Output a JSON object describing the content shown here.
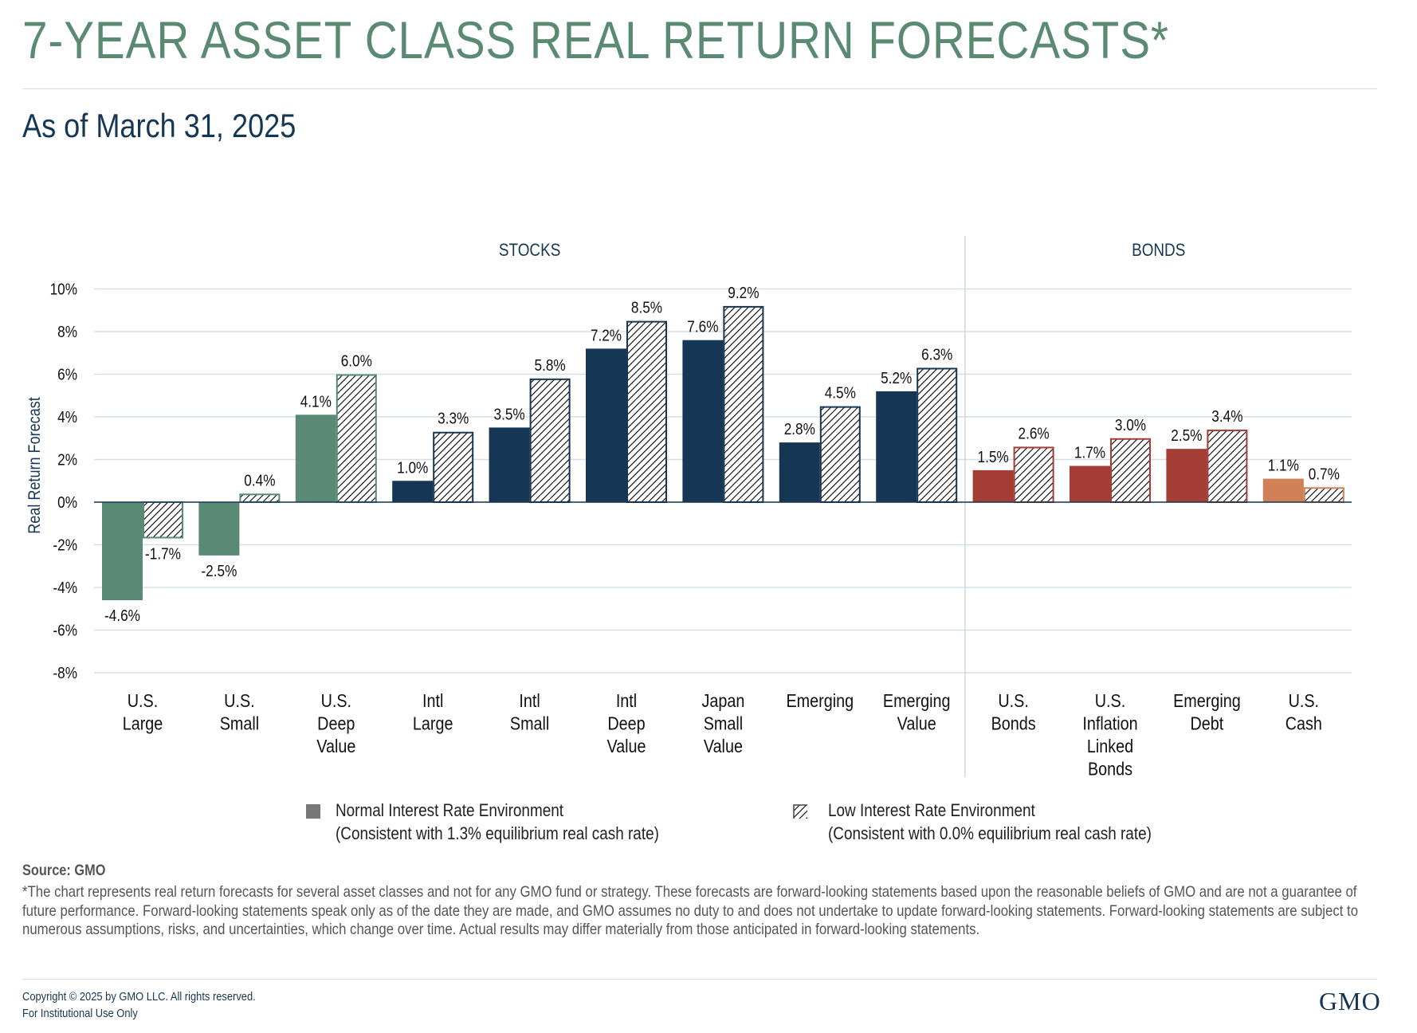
{
  "header": {
    "title": "7-YEAR ASSET CLASS REAL RETURN FORECASTS*",
    "subtitle": "As of March 31, 2025"
  },
  "chart_data": {
    "type": "bar",
    "ylabel": "Real Return Forecast",
    "ylim": [
      -8,
      10
    ],
    "yticks": [
      10,
      8,
      6,
      4,
      2,
      0,
      -2,
      -4,
      -6,
      -8
    ],
    "ytick_labels": [
      "10%",
      "8%",
      "6%",
      "4%",
      "2%",
      "0%",
      "-2%",
      "-4%",
      "-6%",
      "-8%"
    ],
    "grid": true,
    "groups": [
      {
        "label": "STOCKS",
        "categories": 9
      },
      {
        "label": "BONDS",
        "categories": 4
      }
    ],
    "categories": [
      [
        "U.S.",
        "Large"
      ],
      [
        "U.S.",
        "Small"
      ],
      [
        "U.S.",
        "Deep",
        "Value"
      ],
      [
        "Intl",
        "Large"
      ],
      [
        "Intl",
        "Small"
      ],
      [
        "Intl",
        "Deep",
        "Value"
      ],
      [
        "Japan",
        "Small",
        "Value"
      ],
      [
        "Emerging"
      ],
      [
        "Emerging",
        "Value"
      ],
      [
        "U.S.",
        "Bonds"
      ],
      [
        "U.S.",
        "Inflation",
        "Linked",
        "Bonds"
      ],
      [
        "Emerging",
        "Debt"
      ],
      [
        "U.S.",
        "Cash"
      ]
    ],
    "category_colors": [
      "#5a8a76",
      "#5a8a76",
      "#5a8a76",
      "#163753",
      "#163753",
      "#163753",
      "#163753",
      "#163753",
      "#163753",
      "#a33d35",
      "#a33d35",
      "#a33d35",
      "#cf8057"
    ],
    "series": [
      {
        "name": "Normal Interest Rate Environment",
        "pattern": "solid",
        "values": [
          -4.6,
          -2.5,
          4.1,
          1.0,
          3.5,
          7.2,
          7.6,
          2.8,
          5.2,
          1.5,
          1.7,
          2.5,
          1.1
        ],
        "labels": [
          "-4.6%",
          "-2.5%",
          "4.1%",
          "1.0%",
          "3.5%",
          "7.2%",
          "7.6%",
          "2.8%",
          "5.2%",
          "1.5%",
          "1.7%",
          "2.5%",
          "1.1%"
        ]
      },
      {
        "name": "Low Interest Rate Environment",
        "pattern": "hatched",
        "values": [
          -1.7,
          0.4,
          6.0,
          3.3,
          5.8,
          8.5,
          9.2,
          4.5,
          6.3,
          2.6,
          3.0,
          3.4,
          0.7
        ],
        "labels": [
          "-1.7%",
          "0.4%",
          "6.0%",
          "3.3%",
          "5.8%",
          "8.5%",
          "9.2%",
          "4.5%",
          "6.3%",
          "2.6%",
          "3.0%",
          "3.4%",
          "0.7%"
        ]
      }
    ],
    "legend": {
      "placement": "bottom",
      "items": [
        {
          "line1": "Normal Interest Rate Environment",
          "line2": "(Consistent with 1.3% equilibrium real cash rate)",
          "color": "#777777"
        },
        {
          "line1": "Low Interest Rate Environment",
          "line2": "(Consistent with 0.0% equilibrium real cash rate)",
          "color": "#444444"
        }
      ]
    }
  },
  "footer": {
    "source": "Source: GMO",
    "footnote": "*The chart represents real return forecasts for several asset classes and not for any GMO fund or strategy. These forecasts are forward-looking statements based upon the reasonable beliefs of GMO and are not a guarantee of future performance. Forward-looking statements speak only as of the date they are made, and GMO assumes no duty to and does not undertake to update forward-looking statements. Forward-looking statements are subject to numerous assumptions, risks, and uncertainties, which change over time.  Actual results may differ materially from those anticipated in forward-looking statements.",
    "copyright": "Copyright © 2025 by GMO LLC. All rights reserved.",
    "usage": "For Institutional Use Only",
    "logo": "GMO"
  }
}
